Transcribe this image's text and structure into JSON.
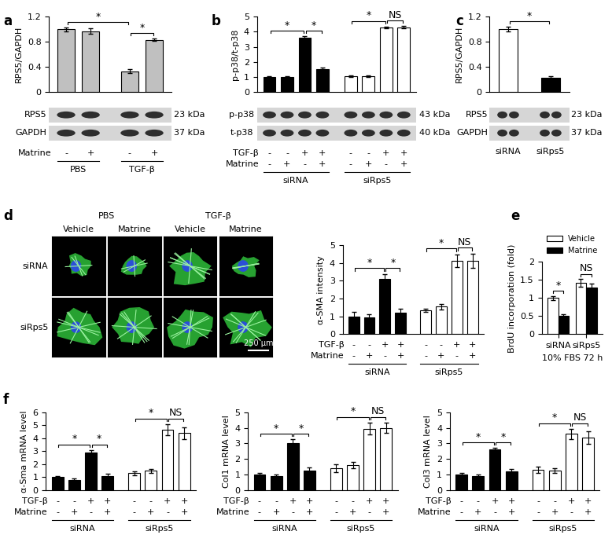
{
  "chart_data": [
    {
      "type": "bar",
      "panel": "a",
      "ylabel": "RPS5/GAPDH",
      "ylim": [
        0,
        1.2
      ],
      "yticks": [
        0,
        0.4,
        0.8,
        1.2
      ],
      "groups": [
        {
          "name": "PBS",
          "color": "#c0c0c0",
          "values": [
            1.0,
            0.97
          ],
          "errors": [
            0.03,
            0.04
          ]
        },
        {
          "name": "TGF-β",
          "color": "#c0c0c0",
          "values": [
            0.33,
            0.83
          ],
          "errors": [
            0.03,
            0.02
          ]
        }
      ],
      "conditions": [
        {
          "name": "Matrine",
          "signs": [
            "-",
            "+"
          ]
        }
      ],
      "significance": [
        {
          "bars": [
            0,
            2
          ],
          "label": "*"
        },
        {
          "bars": [
            2,
            3
          ],
          "label": "*"
        }
      ],
      "blot": [
        {
          "protein": "RPS5",
          "size": "23 kDa"
        },
        {
          "protein": "GAPDH",
          "size": "37 kDa"
        }
      ]
    },
    {
      "type": "bar",
      "panel": "b",
      "ylabel": "p-p38/t-p38",
      "ylim": [
        0,
        5
      ],
      "yticks": [
        0,
        1,
        2,
        3,
        4,
        5
      ],
      "groups": [
        {
          "name": "siRNA",
          "color": "#000000",
          "values": [
            1.0,
            1.0,
            3.6,
            1.5
          ],
          "errors": [
            0.06,
            0.07,
            0.1,
            0.1
          ]
        },
        {
          "name": "siRps5",
          "color": "#ffffff",
          "values": [
            1.05,
            1.05,
            4.3,
            4.3
          ],
          "errors": [
            0.05,
            0.05,
            0.06,
            0.08
          ]
        }
      ],
      "conditions": [
        {
          "name": "TGF-β",
          "signs": [
            "-",
            "-",
            "+",
            "+"
          ]
        },
        {
          "name": "Matrine",
          "signs": [
            "-",
            "+",
            "-",
            "+"
          ]
        }
      ],
      "significance": [
        {
          "bars": [
            0,
            2
          ],
          "label": "*"
        },
        {
          "bars": [
            2,
            3
          ],
          "label": "*"
        },
        {
          "bars": [
            4,
            6
          ],
          "label": "*"
        },
        {
          "bars": [
            6,
            7
          ],
          "label": "NS"
        }
      ],
      "blot": [
        {
          "protein": "p-p38",
          "size": "43 kDa"
        },
        {
          "protein": "t-p38",
          "size": "40 kDa"
        }
      ]
    },
    {
      "type": "bar",
      "panel": "c",
      "ylabel": "RPS5/GAPDH",
      "ylim": [
        0,
        1.2
      ],
      "yticks": [
        0,
        0.4,
        0.8,
        1.2
      ],
      "groups": [
        {
          "name": "siRNA",
          "color": "#ffffff",
          "values": [
            1.0
          ],
          "errors": [
            0.04
          ]
        },
        {
          "name": "siRps5",
          "color": "#000000",
          "values": [
            0.22
          ],
          "errors": [
            0.03
          ]
        }
      ],
      "conditions": [],
      "significance": [
        {
          "bars": [
            0,
            1
          ],
          "label": "*"
        }
      ],
      "blot": [
        {
          "protein": "RPS5",
          "size": "23 kDa"
        },
        {
          "protein": "GAPDH",
          "size": "37 kDa"
        }
      ]
    },
    {
      "type": "bar",
      "panel": "d",
      "ylabel": "α-SMA intensity",
      "ylim": [
        0,
        5
      ],
      "yticks": [
        0,
        1,
        2,
        3,
        4,
        5
      ],
      "groups": [
        {
          "name": "siRNA",
          "color": "#000000",
          "values": [
            1.0,
            0.95,
            3.1,
            1.2
          ],
          "errors": [
            0.25,
            0.15,
            0.25,
            0.25
          ]
        },
        {
          "name": "siRps5",
          "color": "#ffffff",
          "values": [
            1.35,
            1.55,
            4.1,
            4.1
          ],
          "errors": [
            0.1,
            0.15,
            0.35,
            0.4
          ]
        }
      ],
      "conditions": [
        {
          "name": "TGF-β",
          "signs": [
            "-",
            "-",
            "+",
            "+"
          ]
        },
        {
          "name": "Matrine",
          "signs": [
            "-",
            "+",
            "-",
            "+"
          ]
        }
      ],
      "significance": [
        {
          "bars": [
            0,
            2
          ],
          "label": "*"
        },
        {
          "bars": [
            2,
            3
          ],
          "label": "*"
        },
        {
          "bars": [
            4,
            6
          ],
          "label": "*"
        },
        {
          "bars": [
            6,
            7
          ],
          "label": "NS"
        }
      ]
    },
    {
      "type": "grouped_bar",
      "panel": "e",
      "ylabel": "BrdU incorporation (fold)",
      "xlabel": "10% FBS 72 h",
      "ylim": [
        0,
        2
      ],
      "yticks": [
        0,
        0.5,
        1,
        1.5,
        2
      ],
      "legend": "lower center",
      "categories": [
        "siRNA",
        "siRps5"
      ],
      "series": [
        {
          "name": "Vehicle",
          "color": "#ffffff",
          "values": [
            1.0,
            1.42
          ],
          "errors": [
            0.06,
            0.1
          ]
        },
        {
          "name": "Matrine",
          "color": "#000000",
          "values": [
            0.5,
            1.28
          ],
          "errors": [
            0.06,
            0.12
          ]
        }
      ],
      "significance": [
        "*",
        "NS"
      ]
    },
    {
      "type": "bar",
      "panel": "f",
      "ylabel": "α-Sma mRNA level",
      "ylim": [
        0,
        6
      ],
      "yticks": [
        0,
        1,
        2,
        3,
        4,
        5,
        6
      ],
      "groups": [
        {
          "name": "siRNA",
          "color": "#000000",
          "values": [
            1.0,
            0.8,
            2.9,
            1.1
          ],
          "errors": [
            0.08,
            0.08,
            0.2,
            0.15
          ]
        },
        {
          "name": "siRps5",
          "color": "#ffffff",
          "values": [
            1.3,
            1.5,
            4.65,
            4.4
          ],
          "errors": [
            0.15,
            0.15,
            0.45,
            0.45
          ]
        }
      ],
      "conditions": [
        {
          "name": "TGF-β",
          "signs": [
            "-",
            "-",
            "+",
            "+"
          ]
        },
        {
          "name": "Matrine",
          "signs": [
            "-",
            "+",
            "-",
            "+"
          ]
        }
      ],
      "significance": [
        {
          "bars": [
            0,
            2
          ],
          "label": "*"
        },
        {
          "bars": [
            2,
            3
          ],
          "label": "*"
        },
        {
          "bars": [
            4,
            6
          ],
          "label": "*"
        },
        {
          "bars": [
            6,
            7
          ],
          "label": "NS"
        }
      ]
    },
    {
      "type": "bar",
      "ylabel": "Col1 mRNA level",
      "ylim": [
        0,
        5
      ],
      "yticks": [
        0,
        1,
        2,
        3,
        4,
        5
      ],
      "groups": [
        {
          "name": "siRNA",
          "color": "#000000",
          "values": [
            1.0,
            0.88,
            3.0,
            1.25
          ],
          "errors": [
            0.08,
            0.1,
            0.25,
            0.2
          ]
        },
        {
          "name": "siRps5",
          "color": "#ffffff",
          "values": [
            1.4,
            1.6,
            3.95,
            4.0
          ],
          "errors": [
            0.25,
            0.2,
            0.4,
            0.35
          ]
        }
      ],
      "conditions": [
        {
          "name": "TGF-β",
          "signs": [
            "-",
            "-",
            "+",
            "+"
          ]
        },
        {
          "name": "Matrine",
          "signs": [
            "-",
            "+",
            "-",
            "+"
          ]
        }
      ],
      "significance": [
        {
          "bars": [
            0,
            2
          ],
          "label": "*"
        },
        {
          "bars": [
            2,
            3
          ],
          "label": "*"
        },
        {
          "bars": [
            4,
            6
          ],
          "label": "*"
        },
        {
          "bars": [
            6,
            7
          ],
          "label": "NS"
        }
      ]
    },
    {
      "type": "bar",
      "ylabel": "Col3 mRNA level",
      "ylim": [
        0,
        5
      ],
      "yticks": [
        0,
        1,
        2,
        3,
        4,
        5
      ],
      "groups": [
        {
          "name": "siRNA",
          "color": "#000000",
          "values": [
            1.0,
            0.9,
            2.6,
            1.2
          ],
          "errors": [
            0.1,
            0.1,
            0.1,
            0.15
          ]
        },
        {
          "name": "siRps5",
          "color": "#ffffff",
          "values": [
            1.3,
            1.25,
            3.6,
            3.35
          ],
          "errors": [
            0.2,
            0.15,
            0.35,
            0.4
          ]
        }
      ],
      "conditions": [
        {
          "name": "TGF-β",
          "signs": [
            "-",
            "-",
            "+",
            "+"
          ]
        },
        {
          "name": "Matrine",
          "signs": [
            "-",
            "+",
            "-",
            "+"
          ]
        }
      ],
      "significance": [
        {
          "bars": [
            0,
            2
          ],
          "label": "*"
        },
        {
          "bars": [
            2,
            3
          ],
          "label": "*"
        },
        {
          "bars": [
            4,
            6
          ],
          "label": "*"
        },
        {
          "bars": [
            6,
            7
          ],
          "label": "NS"
        }
      ]
    }
  ],
  "images": {
    "columns": [
      {
        "name": "PBS",
        "treatments": [
          "Vehicle",
          "Matrine"
        ]
      },
      {
        "name": "TGF-β",
        "treatments": [
          "Vehicle",
          "Matrine"
        ]
      }
    ],
    "rows": [
      "siRNA",
      "siRps5"
    ],
    "scale_bar": "250 μm"
  }
}
